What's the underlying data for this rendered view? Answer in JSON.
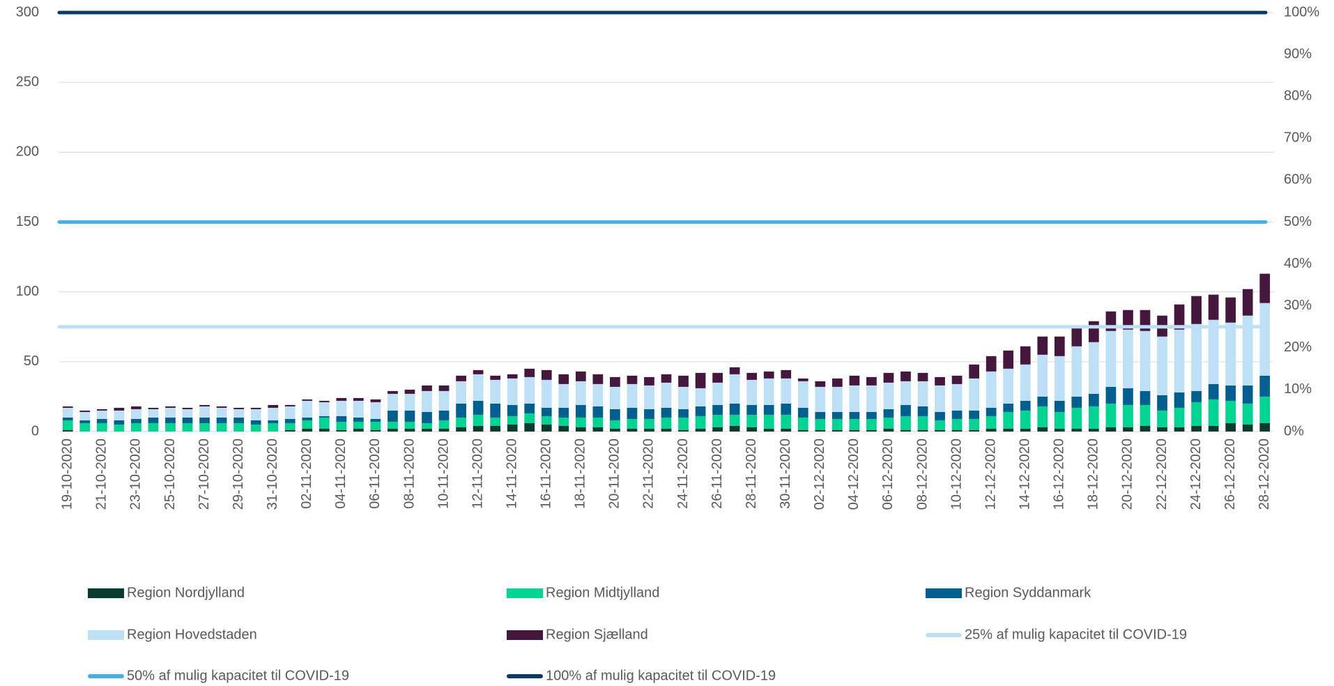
{
  "chart_data": {
    "type": "stacked_bar",
    "categories": [
      "19-10-2020",
      null,
      "21-10-2020",
      null,
      "23-10-2020",
      null,
      "25-10-2020",
      null,
      "27-10-2020",
      null,
      "29-10-2020",
      null,
      "31-10-2020",
      null,
      "02-11-2020",
      null,
      "04-11-2020",
      null,
      "06-11-2020",
      null,
      "08-11-2020",
      null,
      "10-11-2020",
      null,
      "12-11-2020",
      null,
      "14-11-2020",
      null,
      "16-11-2020",
      null,
      "18-11-2020",
      null,
      "20-11-2020",
      null,
      "22-11-2020",
      null,
      "24-11-2020",
      null,
      "26-11-2020",
      null,
      "28-11-2020",
      null,
      "30-11-2020",
      null,
      "02-12-2020",
      null,
      "04-12-2020",
      null,
      "06-12-2020",
      null,
      "08-12-2020",
      null,
      "10-12-2020",
      null,
      "12-12-2020",
      null,
      "14-12-2020",
      null,
      "16-12-2020",
      null,
      "18-12-2020",
      null,
      "20-12-2020",
      null,
      "22-12-2020",
      null,
      "24-12-2020",
      null,
      "26-12-2020",
      null,
      "28-12-2020"
    ],
    "series": [
      {
        "name": "Region Nordjylland",
        "color": "#0b3b2e",
        "values": [
          1,
          0,
          0,
          0,
          0,
          0,
          0,
          0,
          0,
          0,
          0,
          0,
          0,
          1,
          2,
          2,
          1,
          2,
          1,
          2,
          2,
          2,
          2,
          3,
          4,
          4,
          5,
          6,
          5,
          4,
          3,
          3,
          2,
          2,
          2,
          2,
          1,
          2,
          3,
          4,
          3,
          2,
          2,
          1,
          1,
          1,
          1,
          1,
          2,
          1,
          1,
          1,
          1,
          1,
          2,
          2,
          2,
          3,
          2,
          2,
          2,
          3,
          3,
          4,
          3,
          3,
          4,
          4,
          6,
          5,
          6
        ]
      },
      {
        "name": "Region Midtjylland",
        "color": "#00d492",
        "values": [
          7,
          6,
          6,
          5,
          6,
          6,
          6,
          6,
          6,
          6,
          6,
          5,
          6,
          5,
          6,
          8,
          6,
          5,
          6,
          5,
          5,
          4,
          6,
          7,
          8,
          6,
          6,
          7,
          6,
          6,
          7,
          7,
          6,
          7,
          7,
          8,
          9,
          9,
          9,
          8,
          9,
          10,
          10,
          9,
          8,
          8,
          8,
          8,
          8,
          10,
          10,
          7,
          8,
          8,
          9,
          12,
          13,
          15,
          12,
          15,
          16,
          17,
          16,
          15,
          12,
          14,
          17,
          19,
          16,
          15,
          19
        ]
      },
      {
        "name": "Region Syddanmark",
        "color": "#005f8f",
        "values": [
          2,
          2,
          3,
          3,
          3,
          4,
          4,
          4,
          4,
          4,
          4,
          3,
          2,
          3,
          2,
          1,
          4,
          3,
          2,
          8,
          8,
          8,
          7,
          10,
          10,
          10,
          8,
          7,
          6,
          7,
          9,
          8,
          8,
          8,
          7,
          7,
          6,
          7,
          7,
          8,
          7,
          7,
          8,
          7,
          5,
          5,
          5,
          5,
          6,
          8,
          7,
          6,
          6,
          6,
          6,
          6,
          7,
          7,
          8,
          8,
          9,
          12,
          12,
          10,
          11,
          11,
          8,
          11,
          11,
          13,
          15
        ]
      },
      {
        "name": "Region Hovedstaden",
        "color": "#bde0f7",
        "values": [
          7,
          6,
          6,
          7,
          7,
          6,
          7,
          6,
          8,
          7,
          6,
          8,
          9,
          9,
          12,
          10,
          11,
          12,
          12,
          12,
          12,
          15,
          14,
          16,
          19,
          17,
          19,
          19,
          20,
          17,
          17,
          16,
          16,
          17,
          17,
          18,
          16,
          13,
          16,
          21,
          18,
          19,
          18,
          19,
          18,
          18,
          19,
          19,
          19,
          17,
          18,
          19,
          19,
          23,
          26,
          25,
          26,
          30,
          32,
          36,
          37,
          40,
          42,
          43,
          42,
          45,
          48,
          46,
          45,
          50,
          52
        ]
      },
      {
        "name": "Region Sjælland",
        "color": "#46173d",
        "values": [
          1,
          1,
          1,
          2,
          2,
          1,
          1,
          1,
          1,
          1,
          1,
          1,
          2,
          1,
          1,
          1,
          2,
          2,
          2,
          2,
          3,
          4,
          4,
          4,
          3,
          3,
          3,
          6,
          7,
          7,
          7,
          7,
          7,
          6,
          6,
          6,
          8,
          11,
          7,
          5,
          5,
          5,
          6,
          2,
          4,
          6,
          7,
          6,
          7,
          7,
          6,
          6,
          6,
          10,
          11,
          13,
          13,
          13,
          14,
          13,
          15,
          14,
          14,
          15,
          15,
          18,
          20,
          18,
          18,
          19,
          21
        ]
      }
    ],
    "reference_lines": [
      {
        "name": "25% af mulig kapacitet til COVID-19",
        "color": "#bde0f7",
        "value": 75
      },
      {
        "name": "50% af mulig kapacitet til COVID-19",
        "color": "#4aaee8",
        "value": 150
      },
      {
        "name": "100% af mulig kapacitet til COVID-19",
        "color": "#0b3a66",
        "value": 300
      }
    ],
    "ylim": [
      0,
      300
    ],
    "yticks": [
      0,
      50,
      100,
      150,
      200,
      250,
      300
    ],
    "y2lim": [
      0,
      100
    ],
    "y2ticks": [
      {
        "value": 0,
        "label": "0%"
      },
      {
        "value": 10,
        "label": "10%"
      },
      {
        "value": 20,
        "label": "20%"
      },
      {
        "value": 30,
        "label": "30%"
      },
      {
        "value": 40,
        "label": "40%"
      },
      {
        "value": 50,
        "label": "50%"
      },
      {
        "value": 60,
        "label": "60%"
      },
      {
        "value": 70,
        "label": "70%"
      },
      {
        "value": 80,
        "label": "80%"
      },
      {
        "value": 90,
        "label": "90%"
      },
      {
        "value": 100,
        "label": "100%"
      }
    ],
    "grid": true,
    "legend": "bottom"
  }
}
